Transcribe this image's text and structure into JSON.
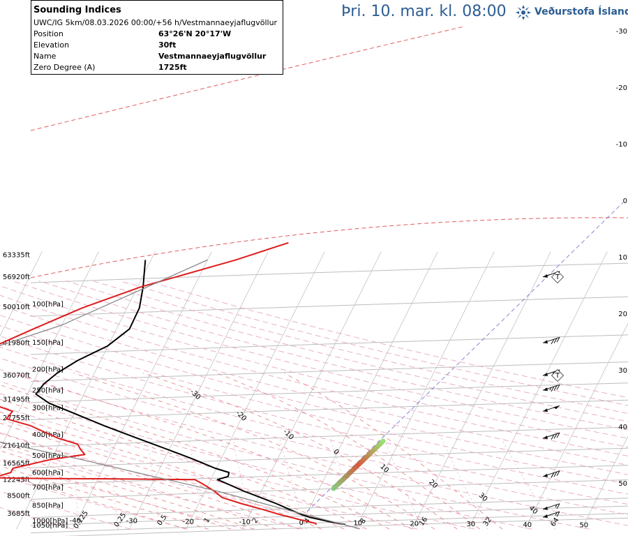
{
  "header": {
    "datetime": "Þri. 10. mar. kl. 08:00",
    "brand": "Veðurstofa Íslands",
    "brand_color": "#2c5d93"
  },
  "info": {
    "title": "Sounding Indices",
    "run": "UWC/IG 5km/08.03.2026 00:00/+56 h/Vestmannaeyjaflugvöllur",
    "rows": [
      {
        "label": "Position",
        "value": "63°26'N 20°17'W"
      },
      {
        "label": "Elevation",
        "value": "30ft"
      },
      {
        "label": "Name",
        "value": "Vestmannaeyjaflugvöllur"
      },
      {
        "label": "Zero Degree (A)",
        "value": "1725ft"
      }
    ]
  },
  "chart_data": {
    "type": "line",
    "diagram": "skew-T log-P",
    "pressure_range_hpa": [
      1050,
      55
    ],
    "temperature_range_c": [
      -40,
      50
    ],
    "pressure_levels": [
      {
        "p": 1000,
        "label": "1000[hPa]"
      },
      {
        "p": 1050,
        "label": "1050[hPa]"
      },
      {
        "p": 850,
        "label": "850[hPa]"
      },
      {
        "p": 700,
        "label": "700[hPa]"
      },
      {
        "p": 600,
        "label": "600[hPa]"
      },
      {
        "p": 500,
        "label": "500[hPa]"
      },
      {
        "p": 400,
        "label": "400[hPa]"
      },
      {
        "p": 300,
        "label": "300[hPa]"
      },
      {
        "p": 250,
        "label": "250[hPa]"
      },
      {
        "p": 200,
        "label": "200[hPa]"
      },
      {
        "p": 150,
        "label": "150[hPa]"
      },
      {
        "p": 100,
        "label": "100[hPa]"
      }
    ],
    "height_labels": [
      {
        "p": 57,
        "label": "63335ft"
      },
      {
        "p": 72,
        "label": "56920ft"
      },
      {
        "p": 99,
        "label": "50010ft"
      },
      {
        "p": 145,
        "label": "41980ft"
      },
      {
        "p": 205,
        "label": "36070ft"
      },
      {
        "p": 265,
        "label": "31495ft"
      },
      {
        "p": 322,
        "label": "27755ft"
      },
      {
        "p": 432,
        "label": "21610ft"
      },
      {
        "p": 522,
        "label": "16565ft"
      },
      {
        "p": 622,
        "label": "12245ft"
      },
      {
        "p": 736,
        "label": "8500ft"
      },
      {
        "p": 890,
        "label": "3685ft"
      }
    ],
    "isotherm_bottom_labels": [
      "-40",
      "-30",
      "-20",
      "-10",
      "0",
      "10",
      "20",
      "30",
      "40",
      "50"
    ],
    "isotherm_inline_labels": [
      "40",
      "30",
      "20",
      "10",
      "0",
      "-10",
      "-20",
      "-30"
    ],
    "mixing_ratio_labels": [
      "0.125",
      "0.25",
      "0.5",
      "1",
      "2",
      "4",
      "8",
      "16",
      "32",
      "64"
    ],
    "right_axis_labels": [
      "-30",
      "-20",
      "-10",
      "0",
      "10",
      "20",
      "30",
      "40",
      "50"
    ],
    "series": [
      {
        "role": "temperature",
        "color": "#000000",
        "points": [
          {
            "p": 1000,
            "t": 7.8
          },
          {
            "p": 975,
            "t": 5.2
          },
          {
            "p": 950,
            "t": 3.0
          },
          {
            "p": 925,
            "t": 0.8
          },
          {
            "p": 900,
            "t": -0.8
          },
          {
            "p": 850,
            "t": -3.5
          },
          {
            "p": 800,
            "t": -6.3
          },
          {
            "p": 750,
            "t": -9.6
          },
          {
            "p": 700,
            "t": -13.2
          },
          {
            "p": 650,
            "t": -16.6
          },
          {
            "p": 620,
            "t": -18.8
          },
          {
            "p": 600,
            "t": -17.2
          },
          {
            "p": 575,
            "t": -17.4
          },
          {
            "p": 550,
            "t": -20.2
          },
          {
            "p": 500,
            "t": -24.8
          },
          {
            "p": 450,
            "t": -30.3
          },
          {
            "p": 400,
            "t": -36.6
          },
          {
            "p": 350,
            "t": -43.6
          },
          {
            "p": 300,
            "t": -51.1
          },
          {
            "p": 275,
            "t": -55.4
          },
          {
            "p": 250,
            "t": -58.5
          },
          {
            "p": 225,
            "t": -58.0
          },
          {
            "p": 200,
            "t": -56.6
          },
          {
            "p": 175,
            "t": -54.1
          },
          {
            "p": 150,
            "t": -50.1
          },
          {
            "p": 125,
            "t": -47.7
          },
          {
            "p": 100,
            "t": -47.8
          },
          {
            "p": 80,
            "t": -49.0
          },
          {
            "p": 60,
            "t": -51.0
          }
        ]
      },
      {
        "role": "dewpoint",
        "color": "#dd1c1c",
        "points": [
          {
            "p": 1000,
            "t": 2.7
          },
          {
            "p": 985,
            "t": 2.3
          },
          {
            "p": 950,
            "t": -0.6
          },
          {
            "p": 900,
            "t": -4.6
          },
          {
            "p": 850,
            "t": -8.3
          },
          {
            "p": 800,
            "t": -12.5
          },
          {
            "p": 750,
            "t": -16.4
          },
          {
            "p": 700,
            "t": -18.4
          },
          {
            "p": 650,
            "t": -21.0
          },
          {
            "p": 620,
            "t": -22.8
          },
          {
            "p": 615,
            "t": -37.6
          },
          {
            "p": 613,
            "t": -50.0
          },
          {
            "p": 608,
            "t": -59.0
          },
          {
            "p": 600,
            "t": -58.0
          },
          {
            "p": 575,
            "t": -56.0
          },
          {
            "p": 550,
            "t": -56.0
          },
          {
            "p": 500,
            "t": -50.0
          },
          {
            "p": 475,
            "t": -44.5
          },
          {
            "p": 450,
            "t": -45.7
          },
          {
            "p": 425,
            "t": -46.7
          },
          {
            "p": 400,
            "t": -50.6
          },
          {
            "p": 350,
            "t": -56.6
          },
          {
            "p": 325,
            "t": -61.5
          },
          {
            "p": 300,
            "t": -61.1
          },
          {
            "p": 280,
            "t": -64.9
          },
          {
            "p": 250,
            "t": -67.2
          },
          {
            "p": 225,
            "t": -70.0
          },
          {
            "p": 200,
            "t": -68.3
          },
          {
            "p": 175,
            "t": -69.3
          },
          {
            "p": 150,
            "t": -70.0
          },
          {
            "p": 125,
            "t": -64.7
          },
          {
            "p": 100,
            "t": -57.9
          },
          {
            "p": 80,
            "t": -49.4
          },
          {
            "p": 60,
            "t": -35.0
          },
          {
            "p": 50,
            "t": -27.2
          }
        ]
      },
      {
        "role": "parcel",
        "color": "#888888",
        "points": [
          {
            "p": 1045,
            "t": 10.7
          },
          {
            "p": 850,
            "t": -4.3
          },
          {
            "p": 700,
            "t": -17.9
          },
          {
            "p": 600,
            "t": -30.4
          },
          {
            "p": 500,
            "t": -44.8
          },
          {
            "p": 400,
            "t": -63.9
          },
          {
            "p": 300,
            "t": -85.7
          },
          {
            "p": 250,
            "t": -99.9
          },
          {
            "p": 200,
            "t": -115.2
          },
          {
            "p": 180,
            "t": -77.0
          },
          {
            "p": 120,
            "t": -60.0
          },
          {
            "p": 60,
            "t": -40.0
          }
        ]
      }
    ],
    "wind_barbs": [
      {
        "p": 72,
        "speed_kt": 15
      },
      {
        "p": 145,
        "speed_kt": 30
      },
      {
        "p": 205,
        "speed_kt": 25
      },
      {
        "p": 240,
        "speed_kt": 35
      },
      {
        "p": 300,
        "speed_kt": 50
      },
      {
        "p": 400,
        "speed_kt": 30
      },
      {
        "p": 600,
        "speed_kt": 30
      },
      {
        "p": 850,
        "speed_kt": 15
      },
      {
        "p": 925,
        "speed_kt": 15
      }
    ],
    "tropopause_markers": [
      {
        "p": 72,
        "label": "T"
      },
      {
        "p": 205,
        "label": "T"
      }
    ]
  }
}
